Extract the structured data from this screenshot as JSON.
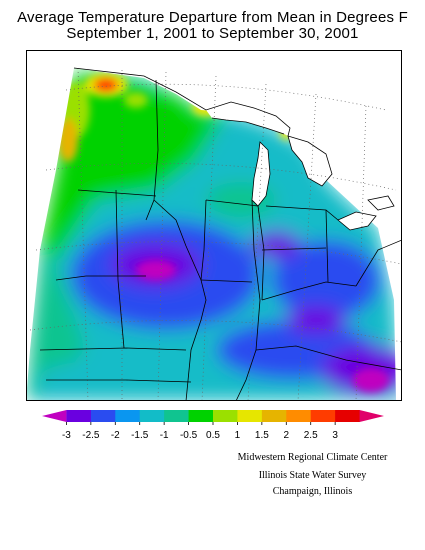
{
  "header": {
    "title_line1": "Average Temperature Departure from Mean in Degrees F",
    "title_line2": "September 1, 2001 to September 30, 2001"
  },
  "legend": {
    "ticks": [
      "-3",
      "-2.5",
      "-2",
      "-1.5",
      "-1",
      "-0.5",
      "0.5",
      "1",
      "1.5",
      "2",
      "2.5",
      "3"
    ],
    "colors": [
      "#c000c0",
      "#6a00e0",
      "#2a4cf0",
      "#0a96f0",
      "#12bcc8",
      "#10c490",
      "#00d200",
      "#9be000",
      "#e6e600",
      "#e6b400",
      "#ff8c00",
      "#ff3c00",
      "#e60000",
      "#e0006a"
    ]
  },
  "credits": {
    "line1": "Midwestern Regional Climate Center",
    "line2": "Illinois State Water Survey",
    "line3": "Champaign, Illinois"
  }
}
